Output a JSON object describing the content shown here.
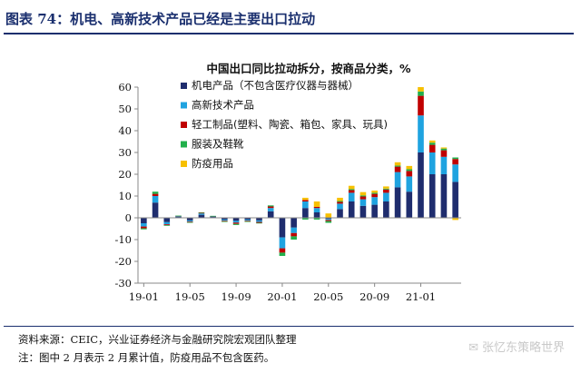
{
  "figure": {
    "title": "图表 74：机电、高新技术产品已经是主要出口拉动",
    "source_note": "资料来源：CEIC，兴业证券经济与金融研究院宏观团队整理",
    "footnote": "注：图中 2 月表示 2 月累计值，防疫用品不包含医药。",
    "watermark": "张忆东策略世界"
  },
  "chart_data": {
    "type": "bar",
    "stacked": true,
    "title": "中国出口同比拉动拆分，按商品分类，%",
    "x_tick_labels": [
      "19-01",
      "19-05",
      "19-09",
      "20-01",
      "20-05",
      "20-09",
      "21-01"
    ],
    "categories": [
      "19-01",
      "19-02",
      "19-03",
      "19-04",
      "19-05",
      "19-06",
      "19-07",
      "19-08",
      "19-09",
      "19-10",
      "19-11",
      "19-12",
      "20-01",
      "20-02",
      "20-03",
      "20-04",
      "20-05",
      "20-06",
      "20-07",
      "20-08",
      "20-09",
      "20-10",
      "20-11",
      "20-12",
      "21-01",
      "21-02",
      "21-03",
      "21-04"
    ],
    "ylim": [
      -30,
      60
    ],
    "yticks": [
      -30,
      -20,
      -10,
      0,
      10,
      20,
      30,
      40,
      50,
      60
    ],
    "legend_position": "top-left",
    "series": [
      {
        "name": "机电产品（不包含医疗仪器与器械）",
        "color": "#1f2d6e",
        "values": [
          -2.5,
          7.0,
          -2.0,
          0.4,
          -1.2,
          1.4,
          0.4,
          -0.8,
          -1.4,
          -0.8,
          -1.2,
          3.0,
          -9.0,
          -4.5,
          4.5,
          2.5,
          -0.5,
          4.0,
          7.5,
          5.5,
          6.0,
          7.5,
          14.0,
          12.0,
          30.0,
          20.0,
          20.0,
          16.5
        ]
      },
      {
        "name": "高新技术产品",
        "color": "#1fa3e0",
        "values": [
          -1.5,
          3.0,
          -1.0,
          0.3,
          -0.5,
          0.6,
          0.3,
          -0.5,
          -0.8,
          -0.5,
          -0.7,
          1.5,
          -5.0,
          -2.5,
          3.0,
          2.0,
          -0.5,
          2.5,
          4.0,
          3.0,
          3.5,
          4.0,
          7.0,
          7.0,
          17.0,
          10.0,
          8.0,
          8.0
        ]
      },
      {
        "name": "轻工制品(塑料、陶瓷、箱包、家具、玩具)",
        "color": "#c00000",
        "values": [
          -0.8,
          1.0,
          -0.4,
          0.2,
          -0.3,
          0.3,
          0.1,
          -0.3,
          -0.6,
          -0.3,
          -0.4,
          0.7,
          -2.0,
          -1.5,
          0.7,
          0.5,
          -0.5,
          0.8,
          1.2,
          1.3,
          1.5,
          1.5,
          2.5,
          2.5,
          9.0,
          3.5,
          3.0,
          2.5
        ]
      },
      {
        "name": "服装及鞋靴",
        "color": "#21b04b",
        "values": [
          -0.5,
          1.0,
          -0.3,
          0.1,
          -0.3,
          0.2,
          0.1,
          -0.3,
          -0.5,
          -0.3,
          -0.3,
          0.5,
          -1.5,
          -1.5,
          -0.8,
          -0.8,
          -0.8,
          0.4,
          0.5,
          0.5,
          0.5,
          0.4,
          0.5,
          0.8,
          2.0,
          1.0,
          0.8,
          0.7
        ]
      },
      {
        "name": "防疫用品",
        "color": "#f7c000",
        "values": [
          0,
          0,
          0,
          0,
          0,
          0,
          0,
          0,
          0,
          0,
          0,
          0,
          0,
          0,
          1.0,
          2.5,
          2.0,
          1.5,
          1.5,
          1.5,
          1.0,
          1.0,
          1.5,
          1.5,
          2.0,
          1.0,
          0.5,
          -1.0
        ]
      }
    ]
  }
}
